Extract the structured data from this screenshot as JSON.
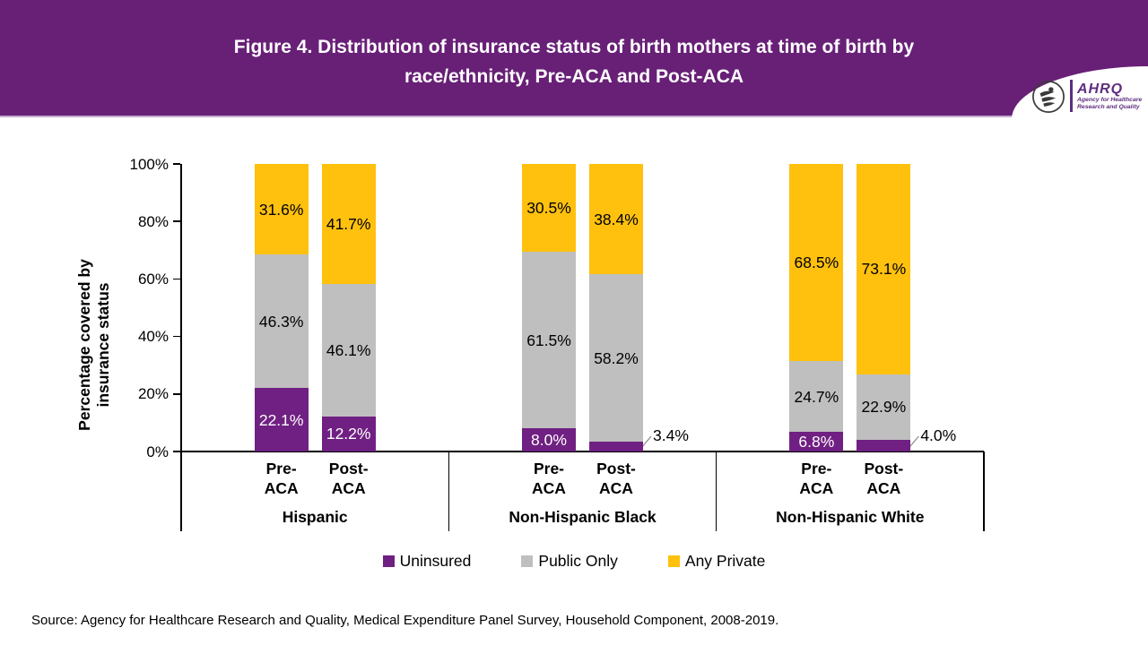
{
  "header": {
    "title_line1": "Figure 4. Distribution of insurance status of birth mothers at time of birth by",
    "title_line2": "race/ethnicity, Pre-ACA and Post-ACA",
    "logo": {
      "acronym": "AHRQ",
      "tagline_line1": "Agency for Healthcare",
      "tagline_line2": "Research and Quality"
    }
  },
  "chart_data": {
    "type": "bar",
    "stacked": true,
    "percent": true,
    "ylabel_line1": "Percentage covered by",
    "ylabel_line2": "insurance status",
    "ylim": [
      0,
      100
    ],
    "ytick_labels": [
      "0%",
      "20%",
      "40%",
      "60%",
      "80%",
      "100%"
    ],
    "series": [
      "Uninsured",
      "Public Only",
      "Any Private"
    ],
    "colors": {
      "Uninsured": "#702082",
      "Public Only": "#BFBFBF",
      "Any Private": "#FFC10E"
    },
    "label_text_colors": {
      "Uninsured": "#FFFFFF",
      "Public Only": "#000000",
      "Any Private": "#000000"
    },
    "grid": false,
    "legend_position": "bottom",
    "groups": [
      {
        "label": "Hispanic",
        "bars": [
          {
            "name_line1": "Pre-",
            "name_line2": "ACA",
            "segments": [
              {
                "series": "Uninsured",
                "value": 22.1,
                "label": "22.1%",
                "callout": false
              },
              {
                "series": "Public Only",
                "value": 46.3,
                "label": "46.3%",
                "callout": false
              },
              {
                "series": "Any Private",
                "value": 31.6,
                "label": "31.6%",
                "callout": false
              }
            ]
          },
          {
            "name_line1": "Post-",
            "name_line2": "ACA",
            "segments": [
              {
                "series": "Uninsured",
                "value": 12.2,
                "label": "12.2%",
                "callout": false
              },
              {
                "series": "Public Only",
                "value": 46.1,
                "label": "46.1%",
                "callout": false
              },
              {
                "series": "Any Private",
                "value": 41.7,
                "label": "41.7%",
                "callout": false
              }
            ]
          }
        ]
      },
      {
        "label": "Non-Hispanic Black",
        "bars": [
          {
            "name_line1": "Pre-",
            "name_line2": "ACA",
            "segments": [
              {
                "series": "Uninsured",
                "value": 8.0,
                "label": "8.0%",
                "callout": false
              },
              {
                "series": "Public Only",
                "value": 61.5,
                "label": "61.5%",
                "callout": false
              },
              {
                "series": "Any Private",
                "value": 30.5,
                "label": "30.5%",
                "callout": false
              }
            ]
          },
          {
            "name_line1": "Post-",
            "name_line2": "ACA",
            "segments": [
              {
                "series": "Uninsured",
                "value": 3.4,
                "label": "3.4%",
                "callout": true
              },
              {
                "series": "Public Only",
                "value": 58.2,
                "label": "58.2%",
                "callout": false
              },
              {
                "series": "Any Private",
                "value": 38.4,
                "label": "38.4%",
                "callout": false
              }
            ]
          }
        ]
      },
      {
        "label": "Non-Hispanic White",
        "bars": [
          {
            "name_line1": "Pre-",
            "name_line2": "ACA",
            "segments": [
              {
                "series": "Uninsured",
                "value": 6.8,
                "label": "6.8%",
                "callout": false
              },
              {
                "series": "Public Only",
                "value": 24.7,
                "label": "24.7%",
                "callout": false
              },
              {
                "series": "Any Private",
                "value": 68.5,
                "label": "68.5%",
                "callout": false
              }
            ]
          },
          {
            "name_line1": "Post-",
            "name_line2": "ACA",
            "segments": [
              {
                "series": "Uninsured",
                "value": 4.0,
                "label": "4.0%",
                "callout": true
              },
              {
                "series": "Public Only",
                "value": 22.9,
                "label": "22.9%",
                "callout": false
              },
              {
                "series": "Any Private",
                "value": 73.1,
                "label": "73.1%",
                "callout": false
              }
            ]
          }
        ]
      }
    ]
  },
  "legend": {
    "items": [
      {
        "label": "Uninsured",
        "color": "#702082"
      },
      {
        "label": "Public Only",
        "color": "#BFBFBF"
      },
      {
        "label": "Any Private",
        "color": "#FFC10E"
      }
    ]
  },
  "source": "Source: Agency for Healthcare Research and Quality, Medical Expenditure Panel Survey, Household Component, 2008-2019."
}
